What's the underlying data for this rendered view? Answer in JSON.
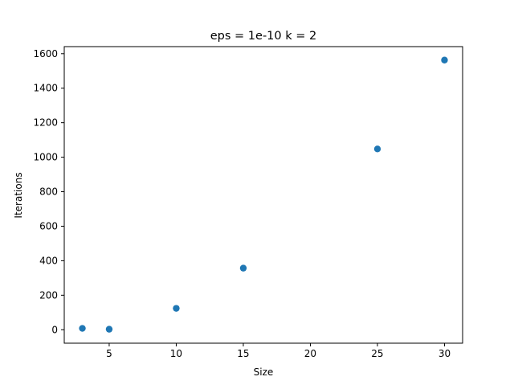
{
  "chart_data": {
    "type": "scatter",
    "title": "eps = 1e-10 k = 2",
    "xlabel": "Size",
    "ylabel": "Iterations",
    "xlim": [
      1.65,
      31.35
    ],
    "ylim": [
      -78.0,
      1641.0
    ],
    "xticks": [
      5,
      10,
      15,
      20,
      25,
      30
    ],
    "yticks": [
      0,
      200,
      400,
      600,
      800,
      1000,
      1200,
      1400,
      1600
    ],
    "grid": false,
    "marker_color": "#1f77b4",
    "series": [
      {
        "x": [
          3,
          5,
          10,
          15,
          25,
          30
        ],
        "y": [
          8,
          3,
          124,
          357,
          1048,
          1563
        ]
      }
    ]
  }
}
